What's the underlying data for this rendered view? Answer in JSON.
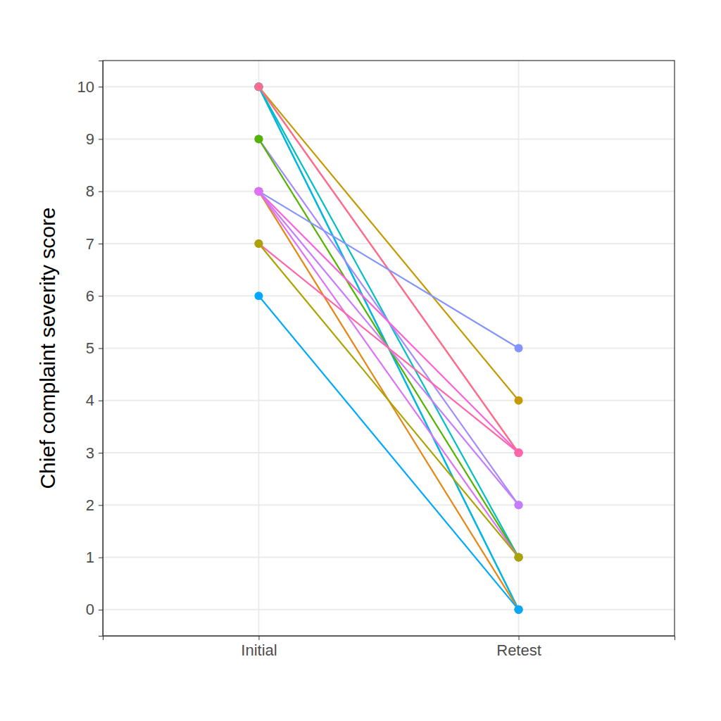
{
  "chart_data": {
    "type": "line",
    "y_label": "Chief complaint severity score",
    "categories": [
      "Initial",
      "Retest"
    ],
    "series": [
      {
        "color": "#C49A00",
        "values": [
          10,
          4
        ]
      },
      {
        "color": "#F8766D",
        "values": [
          10,
          3
        ]
      },
      {
        "color": "#00C094",
        "values": [
          10,
          0
        ]
      },
      {
        "color": "#00B6EB",
        "values": [
          10,
          0
        ]
      },
      {
        "color": "#00BFC4",
        "values": [
          10,
          1
        ]
      },
      {
        "color": "#FF6C91",
        "values": [
          10,
          3
        ]
      },
      {
        "color": "#A58AFF",
        "values": [
          9,
          2
        ]
      },
      {
        "color": "#53B400",
        "values": [
          9,
          1
        ]
      },
      {
        "color": "#8494FF",
        "values": [
          8,
          5
        ]
      },
      {
        "color": "#E68613",
        "values": [
          8,
          0
        ]
      },
      {
        "color": "#FB61D7",
        "values": [
          8,
          3
        ]
      },
      {
        "color": "#C77CFF",
        "values": [
          8,
          2
        ]
      },
      {
        "color": "#DF70F8",
        "values": [
          8,
          1
        ]
      },
      {
        "color": "#FF66A8",
        "values": [
          7,
          3
        ]
      },
      {
        "color": "#ABA300",
        "values": [
          7,
          1
        ]
      },
      {
        "color": "#00A9FF",
        "values": [
          6,
          0
        ]
      }
    ],
    "ylim": [
      -0.5,
      10.5
    ],
    "yticks": [
      0,
      1,
      2,
      3,
      4,
      5,
      6,
      7,
      8,
      9,
      10
    ],
    "grid": true,
    "marker": "circle"
  }
}
